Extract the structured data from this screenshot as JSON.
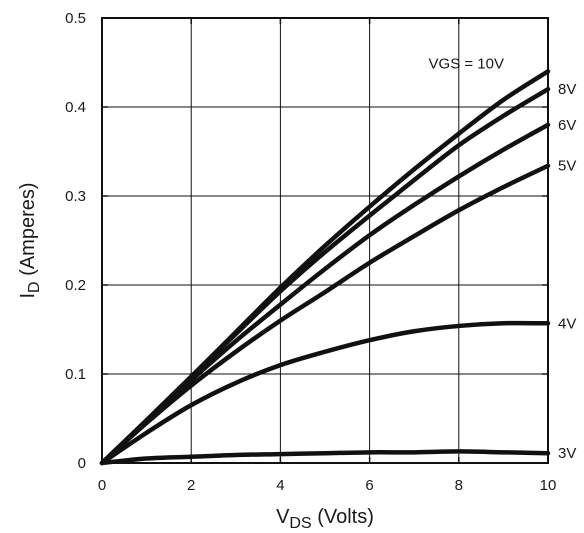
{
  "chart_data": {
    "type": "line",
    "title": "",
    "xlabel": {
      "main": "V",
      "sub": "DS",
      "suffix": " (Volts)"
    },
    "ylabel": {
      "main": "I",
      "sub": "D",
      "suffix": " (Amperes)"
    },
    "xlim": [
      0,
      10
    ],
    "ylim": [
      0,
      0.5
    ],
    "xticks": [
      0,
      2,
      4,
      6,
      8,
      10
    ],
    "yticks": [
      0,
      0.1,
      0.2,
      0.3,
      0.4,
      0.5
    ],
    "xtick_labels": [
      "0",
      "2",
      "4",
      "6",
      "8",
      "10"
    ],
    "ytick_labels": [
      "0",
      "0.1",
      "0.2",
      "0.3",
      "0.4",
      "0.5"
    ],
    "grid": true,
    "line_color": "#111111",
    "grid_color": "#111111",
    "series": [
      {
        "name": "VGS = 10V",
        "x": [
          0,
          1,
          2,
          3,
          4,
          5,
          6,
          7,
          8,
          9,
          10
        ],
        "y": [
          0,
          0.048,
          0.097,
          0.147,
          0.197,
          0.244,
          0.288,
          0.33,
          0.37,
          0.408,
          0.44
        ]
      },
      {
        "name": "8V",
        "x": [
          0,
          1,
          2,
          3,
          4,
          5,
          6,
          7,
          8,
          9,
          10
        ],
        "y": [
          0,
          0.048,
          0.097,
          0.145,
          0.193,
          0.237,
          0.278,
          0.318,
          0.357,
          0.39,
          0.42
        ]
      },
      {
        "name": "6V",
        "x": [
          0,
          1,
          2,
          3,
          4,
          5,
          6,
          7,
          8,
          9,
          10
        ],
        "y": [
          0,
          0.047,
          0.093,
          0.137,
          0.178,
          0.218,
          0.256,
          0.29,
          0.322,
          0.352,
          0.38
        ]
      },
      {
        "name": "5V",
        "x": [
          0,
          1,
          2,
          3,
          4,
          5,
          6,
          7,
          8,
          9,
          10
        ],
        "y": [
          0,
          0.045,
          0.087,
          0.125,
          0.16,
          0.192,
          0.225,
          0.255,
          0.284,
          0.31,
          0.334
        ]
      },
      {
        "name": "4V",
        "x": [
          0,
          1,
          2,
          3,
          4,
          5,
          6,
          7,
          8,
          9,
          10
        ],
        "y": [
          0,
          0.034,
          0.065,
          0.09,
          0.11,
          0.125,
          0.138,
          0.148,
          0.154,
          0.157,
          0.157
        ]
      },
      {
        "name": "3V",
        "x": [
          0,
          1,
          2,
          3,
          4,
          5,
          6,
          7,
          8,
          9,
          10
        ],
        "y": [
          0,
          0.005,
          0.007,
          0.009,
          0.01,
          0.011,
          0.012,
          0.012,
          0.013,
          0.012,
          0.011
        ]
      }
    ]
  }
}
